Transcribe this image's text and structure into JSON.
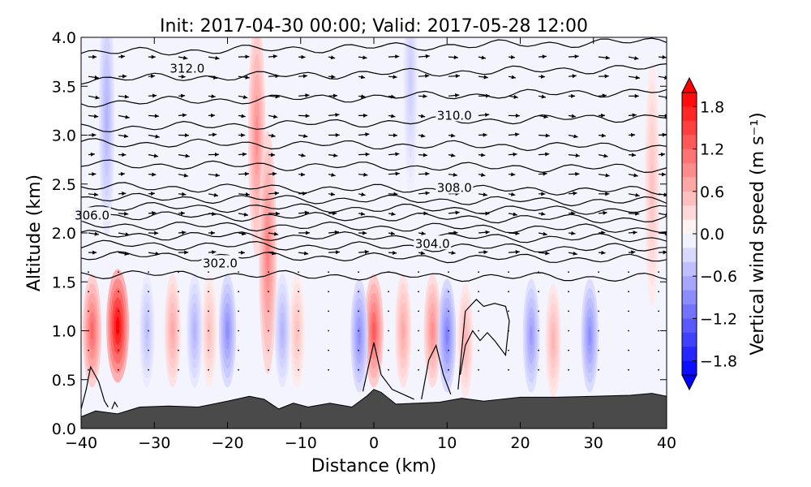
{
  "chart_data": {
    "type": "heatmap",
    "title": "Init: 2017-04-30 00:00; Valid: 2017-05-28 12:00",
    "xlabel": "Distance (km)",
    "ylabel": "Altitude (km)",
    "xlim": [
      -40,
      40
    ],
    "ylim": [
      0.0,
      4.0
    ],
    "x_ticks": [
      -40,
      -30,
      -20,
      -10,
      0,
      10,
      20,
      30,
      40
    ],
    "x_tick_labels": [
      "−40",
      "−30",
      "−20",
      "−10",
      "0",
      "10",
      "20",
      "30",
      "40"
    ],
    "y_ticks": [
      0.0,
      0.5,
      1.0,
      1.5,
      2.0,
      2.5,
      3.0,
      3.5,
      4.0
    ],
    "y_tick_labels": [
      "0.0",
      "0.5",
      "1.0",
      "1.5",
      "2.0",
      "2.5",
      "3.0",
      "3.5",
      "4.0"
    ],
    "colorbar": {
      "label": "Vertical wind speed (m s⁻¹)",
      "range": [
        -2.0,
        2.0
      ],
      "ticks": [
        1.8,
        1.2,
        0.6,
        0.0,
        -0.6,
        -1.2,
        -1.8
      ],
      "tick_labels": [
        "1.8",
        "1.2",
        "0.6",
        "0.0",
        "−0.6",
        "−1.2",
        "−1.8"
      ],
      "colormap": "bwr",
      "extend": "both"
    },
    "contour_labels": [
      {
        "text": "312.0",
        "x": -25.5,
        "y": 3.68
      },
      {
        "text": "310.0",
        "x": 11.0,
        "y": 3.2
      },
      {
        "text": "308.0",
        "x": 11.0,
        "y": 2.46
      },
      {
        "text": "306.0",
        "x": -38.5,
        "y": 2.18
      },
      {
        "text": "304.0",
        "x": 8.0,
        "y": 1.89
      },
      {
        "text": "302.0",
        "x": -21.0,
        "y": 1.69
      }
    ],
    "updrafts_w": [
      {
        "x": -38.5,
        "y": 1.0,
        "w": 1.2
      },
      {
        "x": -35.0,
        "y": 1.05,
        "w": 2.0
      },
      {
        "x": -27.5,
        "y": 1.0,
        "w": 0.7
      },
      {
        "x": -22.5,
        "y": 1.0,
        "w": 0.5
      },
      {
        "x": -16.0,
        "y": 3.0,
        "w": 0.9
      },
      {
        "x": -14.5,
        "y": 1.8,
        "w": 1.0
      },
      {
        "x": -10.5,
        "y": 1.0,
        "w": 0.5
      },
      {
        "x": 0.0,
        "y": 1.0,
        "w": 1.3
      },
      {
        "x": 4.0,
        "y": 1.0,
        "w": 0.7
      },
      {
        "x": 8.0,
        "y": 1.0,
        "w": 0.9
      },
      {
        "x": 12.5,
        "y": 0.9,
        "w": 0.6
      },
      {
        "x": 24.5,
        "y": 0.9,
        "w": 0.6
      },
      {
        "x": 38.0,
        "y": 2.5,
        "w": 0.5
      }
    ],
    "downdrafts_w": [
      {
        "x": -36.5,
        "y": 3.2,
        "w": -0.6
      },
      {
        "x": -31.0,
        "y": 1.0,
        "w": -0.5
      },
      {
        "x": -24.5,
        "y": 1.0,
        "w": -0.6
      },
      {
        "x": -20.0,
        "y": 1.0,
        "w": -0.9
      },
      {
        "x": -12.5,
        "y": 1.0,
        "w": -0.6
      },
      {
        "x": -2.0,
        "y": 0.95,
        "w": -0.9
      },
      {
        "x": 10.0,
        "y": 0.95,
        "w": -1.0
      },
      {
        "x": 21.5,
        "y": 0.95,
        "w": -0.8
      },
      {
        "x": 29.5,
        "y": 0.95,
        "w": -0.9
      },
      {
        "x": 5.0,
        "y": 3.6,
        "w": -0.4
      }
    ],
    "terrain_km": {
      "x": [
        -40,
        -38,
        -35,
        -32,
        -28,
        -24,
        -20,
        -17,
        -15,
        -13,
        -11,
        -9,
        -6,
        -3,
        -1,
        0,
        1,
        3,
        6,
        9,
        12,
        15,
        20,
        25,
        30,
        35,
        38,
        40
      ],
      "y": [
        0.12,
        0.18,
        0.15,
        0.22,
        0.23,
        0.22,
        0.28,
        0.33,
        0.3,
        0.2,
        0.26,
        0.22,
        0.26,
        0.22,
        0.33,
        0.4,
        0.37,
        0.25,
        0.26,
        0.27,
        0.31,
        0.28,
        0.32,
        0.32,
        0.33,
        0.34,
        0.36,
        0.33
      ]
    },
    "isentrope_heights_km": [
      1.56,
      1.75,
      1.86,
      1.96,
      2.06,
      2.16,
      2.25,
      2.34,
      2.45,
      2.68,
      2.9,
      3.13,
      3.39,
      3.63,
      3.9
    ],
    "low_level_contours_km": [
      {
        "x": [
          -40,
          -39.3,
          -38.7,
          -37.6,
          -36.8,
          -36.3
        ],
        "y": [
          0.2,
          0.4,
          0.63,
          0.48,
          0.28,
          0.22
        ]
      },
      {
        "x": [
          -35.8,
          -35.4,
          -35.0
        ],
        "y": [
          0.2,
          0.27,
          0.22
        ]
      },
      {
        "x": [
          -1.5,
          -1.0,
          0.0,
          1.0,
          2.5,
          4.0,
          5.5
        ],
        "y": [
          0.38,
          0.55,
          0.88,
          0.55,
          0.4,
          0.35,
          0.3
        ]
      },
      {
        "x": [
          6.5,
          7.5,
          8.5,
          9.5,
          10.5
        ],
        "y": [
          0.3,
          0.7,
          0.85,
          0.55,
          0.35
        ]
      },
      {
        "x": [
          11.5,
          12.5,
          14.0,
          15.0,
          16.5,
          18.0,
          18.5,
          18.0,
          16.5,
          15.5,
          14.5,
          13.5,
          12.5,
          11.8
        ],
        "y": [
          0.4,
          1.2,
          1.32,
          1.25,
          1.28,
          1.25,
          1.1,
          0.75,
          0.9,
          0.98,
          0.9,
          1.0,
          0.85,
          0.55
        ]
      }
    ],
    "wind_vectors": "horizontal wind arrows above ~1.8 km pointing mostly east; tiny dots below"
  }
}
